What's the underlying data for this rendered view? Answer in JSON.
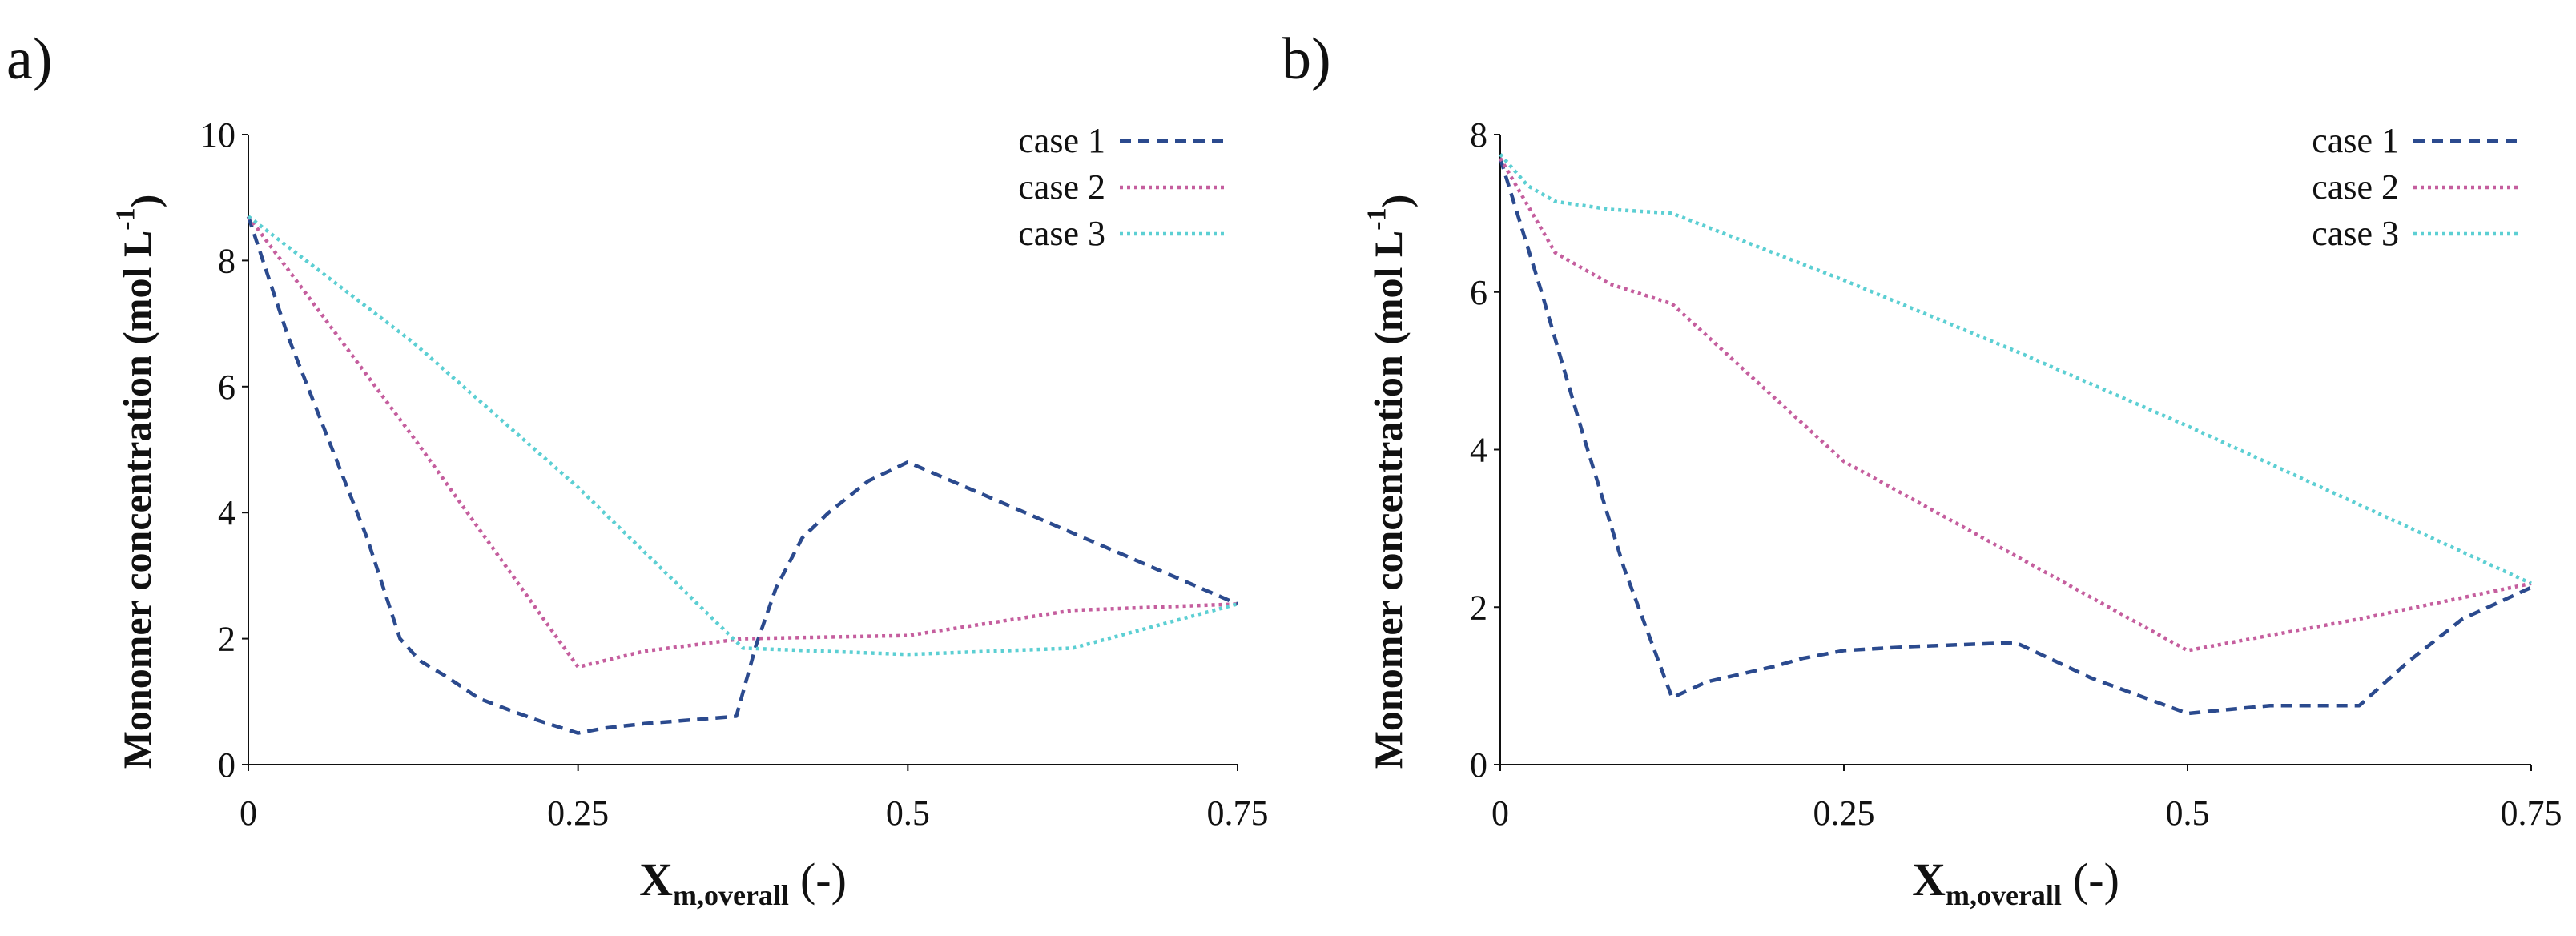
{
  "chart_data": [
    {
      "type": "line",
      "panel_label": "a)",
      "ylabel": "Monomer concentration (mol L",
      "ylabel_superscript": "-1",
      "ylabel_close": ")",
      "xlabel_main": "X",
      "xlabel_sub": "m,overall",
      "xlabel_unit": "(-)",
      "xlim": [
        0,
        0.75
      ],
      "ylim": [
        0,
        10
      ],
      "xticks": [
        0,
        0.25,
        0.5,
        0.75
      ],
      "xtick_labels": [
        "0",
        "0.25",
        "0.5",
        "0.75"
      ],
      "yticks": [
        0,
        2,
        4,
        6,
        8,
        10
      ],
      "ytick_labels": [
        "0",
        "2",
        "4",
        "6",
        "8",
        "10"
      ],
      "legend_position": "top-right",
      "series": [
        {
          "name": "case 1",
          "color": "#2b4a8e",
          "dash": "14,9",
          "x": [
            0,
            0.03,
            0.06,
            0.09,
            0.115,
            0.13,
            0.15,
            0.175,
            0.2,
            0.22,
            0.25,
            0.27,
            0.3,
            0.33,
            0.36,
            0.37,
            0.385,
            0.4,
            0.42,
            0.44,
            0.47,
            0.5,
            0.75
          ],
          "y": [
            8.7,
            6.8,
            5.2,
            3.6,
            2.0,
            1.65,
            1.4,
            1.05,
            0.85,
            0.7,
            0.5,
            0.58,
            0.65,
            0.7,
            0.75,
            0.77,
            1.9,
            2.8,
            3.6,
            4.0,
            4.5,
            4.8,
            2.55
          ]
        },
        {
          "name": "case 2",
          "color": "#c55e9e",
          "dash": "4,5",
          "x": [
            0,
            0.125,
            0.25,
            0.3,
            0.375,
            0.5,
            0.625,
            0.75
          ],
          "y": [
            8.7,
            5.2,
            1.55,
            1.8,
            2.0,
            2.05,
            2.45,
            2.55
          ]
        },
        {
          "name": "case 3",
          "color": "#5ccfd3",
          "dash": "4,5",
          "x": [
            0,
            0.125,
            0.25,
            0.375,
            0.5,
            0.625,
            0.75
          ],
          "y": [
            8.7,
            6.7,
            4.4,
            1.85,
            1.75,
            1.85,
            2.55
          ]
        }
      ]
    },
    {
      "type": "line",
      "panel_label": "b)",
      "ylabel": "Monomer concentration (mol L",
      "ylabel_superscript": "-1",
      "ylabel_close": ")",
      "xlabel_main": "X",
      "xlabel_sub": "m,overall",
      "xlabel_unit": "(-)",
      "xlim": [
        0,
        0.75
      ],
      "ylim": [
        0,
        8
      ],
      "xticks": [
        0,
        0.25,
        0.5,
        0.75
      ],
      "xtick_labels": [
        "0",
        "0.25",
        "0.5",
        "0.75"
      ],
      "yticks": [
        0,
        2,
        4,
        6,
        8
      ],
      "ytick_labels": [
        "0",
        "2",
        "4",
        "6",
        "8"
      ],
      "legend_position": "top-right",
      "series": [
        {
          "name": "case 1",
          "color": "#2b4a8e",
          "dash": "14,9",
          "x": [
            0,
            0.03,
            0.06,
            0.09,
            0.125,
            0.15,
            0.2,
            0.22,
            0.25,
            0.3,
            0.375,
            0.43,
            0.5,
            0.53,
            0.56,
            0.625,
            0.66,
            0.7,
            0.75
          ],
          "y": [
            7.7,
            6.0,
            4.2,
            2.5,
            0.85,
            1.05,
            1.25,
            1.35,
            1.45,
            1.5,
            1.55,
            1.1,
            0.65,
            0.7,
            0.75,
            0.75,
            1.3,
            1.85,
            2.25
          ]
        },
        {
          "name": "case 2",
          "color": "#c55e9e",
          "dash": "4,5",
          "x": [
            0,
            0.04,
            0.08,
            0.125,
            0.25,
            0.375,
            0.5,
            0.625,
            0.75
          ],
          "y": [
            7.7,
            6.5,
            6.1,
            5.85,
            3.85,
            2.65,
            1.45,
            1.85,
            2.3
          ]
        },
        {
          "name": "case 3",
          "color": "#5ccfd3",
          "dash": "4,5",
          "x": [
            0,
            0.02,
            0.04,
            0.08,
            0.125,
            0.25,
            0.375,
            0.5,
            0.625,
            0.75
          ],
          "y": [
            7.75,
            7.35,
            7.15,
            7.05,
            7.0,
            6.15,
            5.25,
            4.3,
            3.3,
            2.3
          ]
        }
      ]
    }
  ]
}
